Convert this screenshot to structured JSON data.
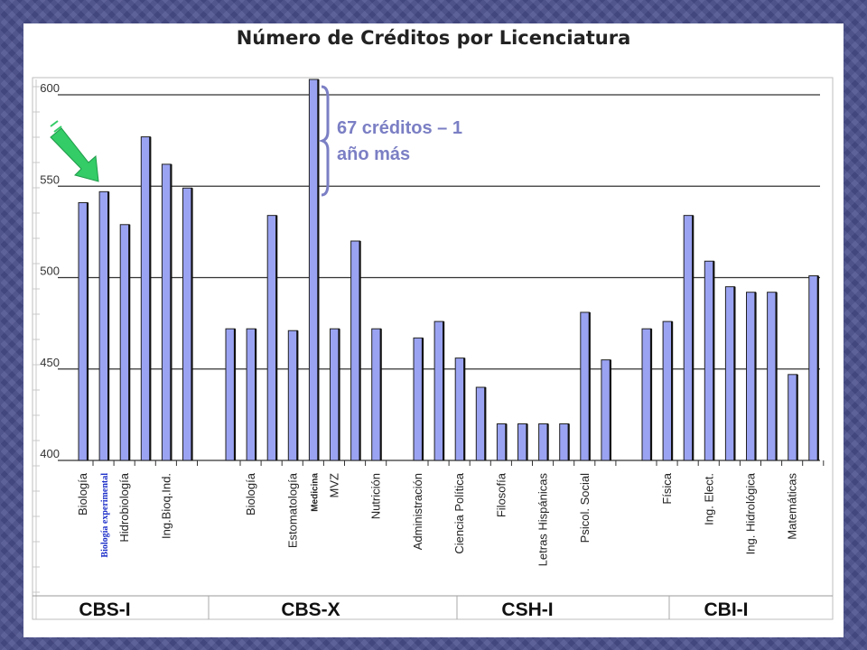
{
  "chart_data": {
    "type": "bar",
    "title": "Número de Créditos por Licenciatura",
    "ylim": [
      400,
      600
    ],
    "yticks": [
      400,
      450,
      500,
      550,
      600
    ],
    "grid": true,
    "bar_color": "#9aa3f2",
    "groups": [
      "CBS-I",
      "CBS-X",
      "CSH-I",
      "CBI-I"
    ],
    "bars": [
      {
        "label": "Biología",
        "value": 541,
        "group": "CBS-I"
      },
      {
        "label": "Biología experimental",
        "value": 547,
        "group": "CBS-I"
      },
      {
        "label": "Hidrobiología",
        "value": 529,
        "group": "CBS-I"
      },
      {
        "label": "",
        "value": 577,
        "group": "CBS-I"
      },
      {
        "label": "Ing.Bioq.Ind.",
        "value": 562,
        "group": "CBS-I"
      },
      {
        "label": "",
        "value": 549,
        "group": "CBS-I"
      },
      {
        "label": "",
        "value": 472,
        "group": "CBS-X"
      },
      {
        "label": "Biología",
        "value": 472,
        "group": "CBS-X"
      },
      {
        "label": "",
        "value": 534,
        "group": "CBS-X"
      },
      {
        "label": "Estomatología",
        "value": 471,
        "group": "CBS-X"
      },
      {
        "label": "Medicina",
        "value": 610,
        "group": "CBS-X"
      },
      {
        "label": "MVZ",
        "value": 472,
        "group": "CBS-X"
      },
      {
        "label": "",
        "value": 520,
        "group": "CBS-X"
      },
      {
        "label": "Nutrición",
        "value": 472,
        "group": "CBS-X"
      },
      {
        "label": "Administración",
        "value": 467,
        "group": "CSH-I"
      },
      {
        "label": "",
        "value": 476,
        "group": "CSH-I"
      },
      {
        "label": "Ciencia Política",
        "value": 456,
        "group": "CSH-I"
      },
      {
        "label": "",
        "value": 440,
        "group": "CSH-I"
      },
      {
        "label": "Filosofía",
        "value": 420,
        "group": "CSH-I"
      },
      {
        "label": "",
        "value": 420,
        "group": "CSH-I"
      },
      {
        "label": "Letras Hispánicas",
        "value": 420,
        "group": "CSH-I"
      },
      {
        "label": "",
        "value": 420,
        "group": "CSH-I"
      },
      {
        "label": "Psicol. Social",
        "value": 481,
        "group": "CSH-I"
      },
      {
        "label": "",
        "value": 455,
        "group": "CSH-I"
      },
      {
        "label": "",
        "value": 472,
        "group": "CBI-I"
      },
      {
        "label": "Física",
        "value": 476,
        "group": "CBI-I"
      },
      {
        "label": "",
        "value": 534,
        "group": "CBI-I"
      },
      {
        "label": "Ing. Elect.",
        "value": 509,
        "group": "CBI-I"
      },
      {
        "label": "",
        "value": 495,
        "group": "CBI-I"
      },
      {
        "label": "Ing. Hidrológica",
        "value": 492,
        "group": "CBI-I"
      },
      {
        "label": "",
        "value": 492,
        "group": "CBI-I"
      },
      {
        "label": "Matemáticas",
        "value": 447,
        "group": "CBI-I"
      },
      {
        "label": "",
        "value": 501,
        "group": "CBI-I"
      }
    ],
    "annotation": {
      "line1": "67 créditos – 1",
      "line2": "año más",
      "color": "#7b7fc4"
    },
    "arrow_color": "#33cc66",
    "highlight_label_color": "#1a2cc8"
  }
}
